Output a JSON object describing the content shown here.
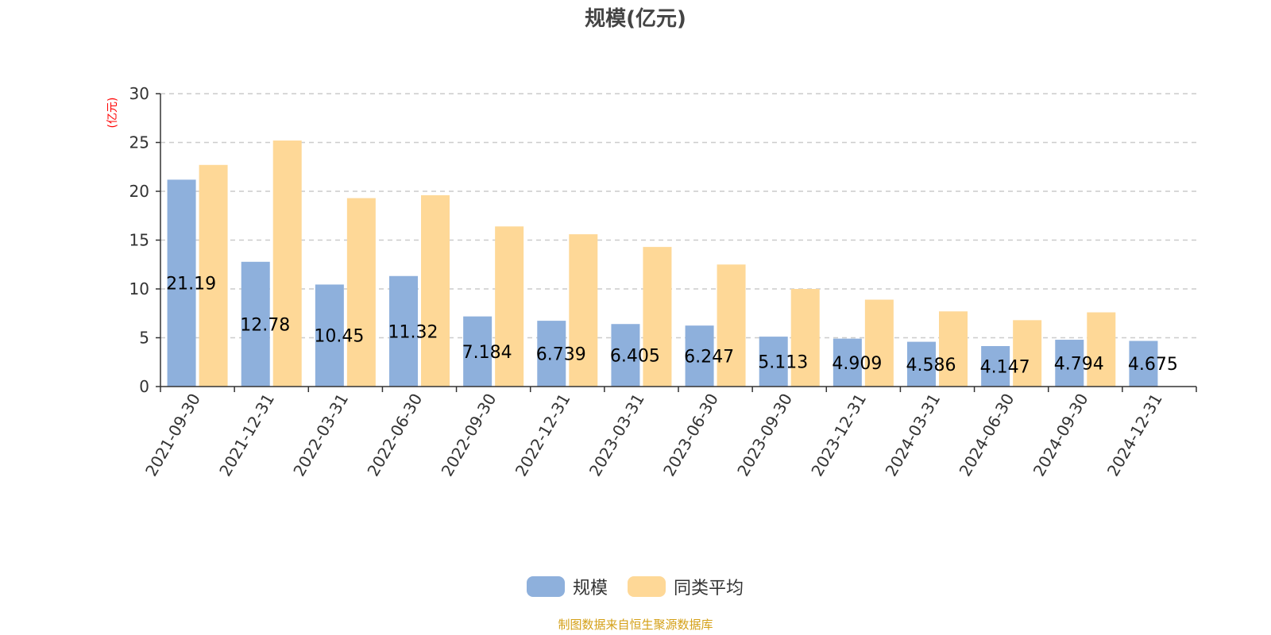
{
  "chart_data": {
    "type": "bar",
    "title": "规模(亿元)",
    "ylabel": "(亿元)",
    "xlabel": "",
    "ylim": [
      0,
      30
    ],
    "yticks": [
      0,
      5,
      10,
      15,
      20,
      25,
      30
    ],
    "grid": true,
    "legend_position": "bottom-center",
    "categories": [
      "2021-09-30",
      "2021-12-31",
      "2022-03-31",
      "2022-06-30",
      "2022-09-30",
      "2022-12-31",
      "2023-03-31",
      "2023-06-30",
      "2023-09-30",
      "2023-12-31",
      "2024-03-31",
      "2024-06-30",
      "2024-09-30",
      "2024-12-31"
    ],
    "series": [
      {
        "name": "规模",
        "color": "#8eb0dc",
        "values": [
          21.19,
          12.78,
          10.45,
          11.32,
          7.184,
          6.739,
          6.405,
          6.247,
          5.113,
          4.909,
          4.586,
          4.147,
          4.794,
          4.675
        ],
        "labels": [
          "21.19",
          "12.78",
          "10.45",
          "11.32",
          "7.184",
          "6.739",
          "6.405",
          "6.247",
          "5.113",
          "4.909",
          "4.586",
          "4.147",
          "4.794",
          "4.675"
        ]
      },
      {
        "name": "同类平均",
        "color": "#fed897",
        "values": [
          22.7,
          25.2,
          19.3,
          19.6,
          16.4,
          15.6,
          14.3,
          12.5,
          10.0,
          8.9,
          7.7,
          6.8,
          7.6,
          null
        ]
      }
    ],
    "source": "制图数据来自恒生聚源数据库",
    "colors": {
      "axis_label": "#ff0000",
      "source": "#d4a017",
      "grid": "#cccccc",
      "axis": "#333333"
    }
  }
}
